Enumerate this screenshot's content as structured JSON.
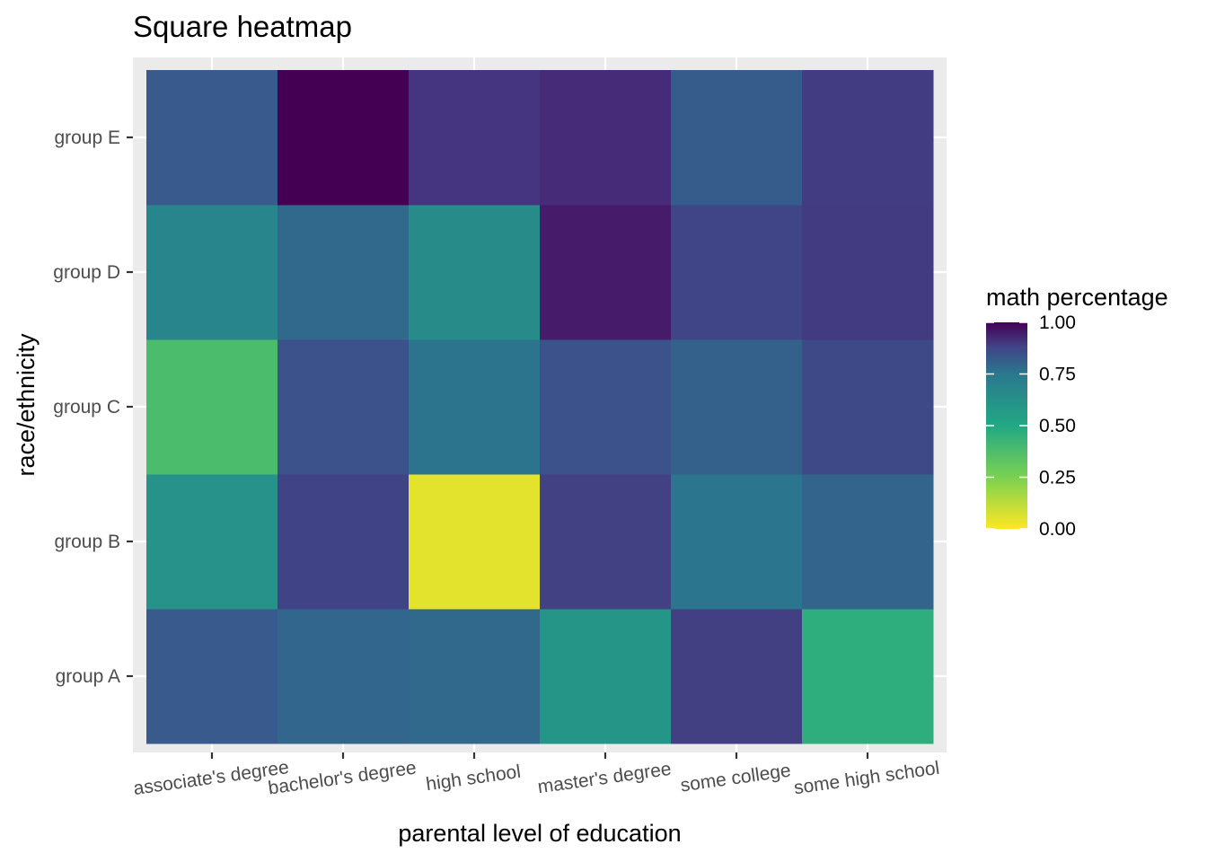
{
  "chart_data": {
    "type": "heatmap",
    "title": "Square heatmap",
    "xlabel": "parental level of education",
    "ylabel": "race/ethnicity",
    "x_categories": [
      "associate's degree",
      "bachelor's degree",
      "high school",
      "master's degree",
      "some college",
      "some high school"
    ],
    "y_categories": [
      "group A",
      "group B",
      "group C",
      "group D",
      "group E"
    ],
    "values": [
      [
        0.67,
        0.62,
        0.61,
        0.46,
        0.79,
        0.38
      ],
      [
        0.47,
        0.77,
        0.05,
        0.78,
        0.56,
        0.63
      ],
      [
        0.33,
        0.7,
        0.57,
        0.7,
        0.64,
        0.74
      ],
      [
        0.51,
        0.61,
        0.49,
        0.92,
        0.76,
        0.81
      ],
      [
        0.67,
        1.0,
        0.84,
        0.87,
        0.66,
        0.8
      ]
    ],
    "legend": {
      "title": "math percentage",
      "placement": "right",
      "ticks": [
        "0.00",
        "0.25",
        "0.50",
        "0.75",
        "1.00"
      ],
      "range": [
        0,
        1
      ]
    },
    "colormap": "viridis-reversed",
    "panel_background": "#ebebeb",
    "grid": true
  }
}
